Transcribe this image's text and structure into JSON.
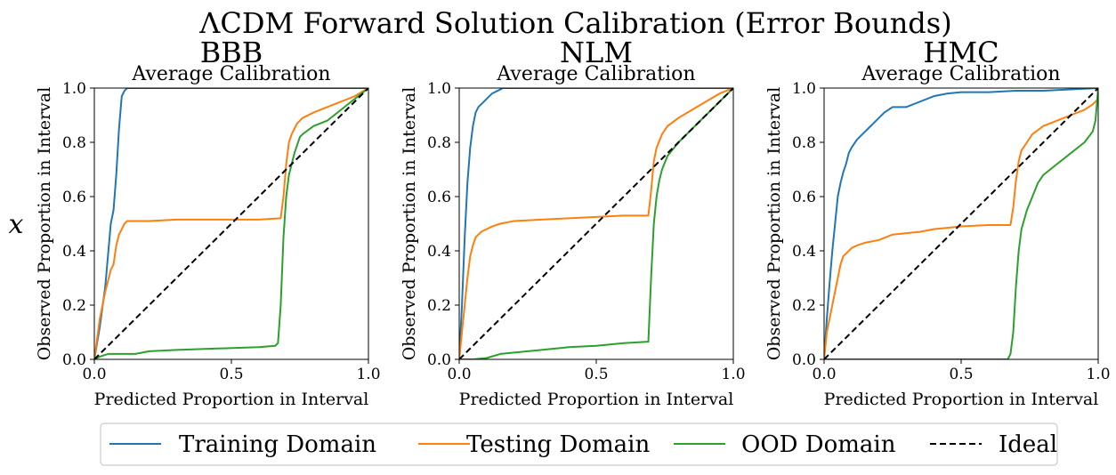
{
  "figure": {
    "title": "ΛCDM Forward Solution Calibration (Error Bounds)",
    "row_label": "x"
  },
  "legend": {
    "placement": "bottom-center",
    "entries": [
      {
        "label": "Training Domain",
        "color": "#1f77b4",
        "dash": "solid"
      },
      {
        "label": "Testing Domain",
        "color": "#ff7f0e",
        "dash": "solid"
      },
      {
        "label": "OOD Domain",
        "color": "#2ca02c",
        "dash": "solid"
      },
      {
        "label": "Ideal",
        "color": "#000000",
        "dash": "dashed"
      }
    ]
  },
  "chart_data": [
    {
      "type": "line",
      "model": "BBB",
      "title": "Average Calibration",
      "xlabel": "Predicted Proportion in Interval",
      "ylabel": "Observed Proportion in Interval",
      "xlim": [
        0,
        1
      ],
      "ylim": [
        0,
        1
      ],
      "xticks": [
        "0.0",
        "0.5",
        "1.0"
      ],
      "yticks": [
        "0.0",
        "0.2",
        "0.4",
        "0.6",
        "0.8",
        "1.0"
      ],
      "grid": false,
      "series": [
        {
          "name": "Training Domain",
          "color": "#1f77b4",
          "x": [
            0,
            0.02,
            0.04,
            0.06,
            0.07,
            0.08,
            0.09,
            0.1,
            0.11,
            0.12,
            0.13,
            1.0
          ],
          "y": [
            0,
            0.12,
            0.27,
            0.5,
            0.55,
            0.68,
            0.85,
            0.97,
            0.99,
            1.0,
            1.0,
            1.0
          ]
        },
        {
          "name": "Testing Domain",
          "color": "#ff7f0e",
          "x": [
            0,
            0.02,
            0.04,
            0.06,
            0.07,
            0.08,
            0.09,
            0.1,
            0.11,
            0.12,
            0.2,
            0.3,
            0.45,
            0.6,
            0.68,
            0.69,
            0.7,
            0.71,
            0.72,
            0.73,
            0.74,
            0.76,
            0.8,
            0.85,
            0.9,
            0.95,
            1.0
          ],
          "y": [
            0,
            0.15,
            0.25,
            0.33,
            0.35,
            0.42,
            0.46,
            0.48,
            0.5,
            0.51,
            0.51,
            0.515,
            0.515,
            0.515,
            0.52,
            0.6,
            0.72,
            0.8,
            0.83,
            0.85,
            0.87,
            0.89,
            0.91,
            0.93,
            0.95,
            0.97,
            1.0
          ]
        },
        {
          "name": "OOD Domain",
          "color": "#2ca02c",
          "x": [
            0,
            0.02,
            0.05,
            0.1,
            0.15,
            0.2,
            0.3,
            0.45,
            0.6,
            0.66,
            0.67,
            0.68,
            0.69,
            0.7,
            0.71,
            0.72,
            0.73,
            0.74,
            0.75,
            0.76,
            0.8,
            0.85,
            0.9,
            0.95,
            1.0
          ],
          "y": [
            0,
            0.01,
            0.02,
            0.02,
            0.02,
            0.03,
            0.035,
            0.04,
            0.045,
            0.05,
            0.06,
            0.2,
            0.45,
            0.6,
            0.68,
            0.72,
            0.76,
            0.79,
            0.82,
            0.83,
            0.86,
            0.88,
            0.92,
            0.96,
            1.0
          ]
        },
        {
          "name": "Ideal",
          "color": "#000000",
          "dashed": true,
          "x": [
            0,
            1
          ],
          "y": [
            0,
            1
          ]
        }
      ]
    },
    {
      "type": "line",
      "model": "NLM",
      "title": "Average Calibration",
      "xlabel": "Predicted Proportion in Interval",
      "ylabel": "Observed Proportion in Interval",
      "xlim": [
        0,
        1
      ],
      "ylim": [
        0,
        1
      ],
      "xticks": [
        "0.0",
        "0.5",
        "1.0"
      ],
      "yticks": [
        "0.0",
        "0.2",
        "0.4",
        "0.6",
        "0.8",
        "1.0"
      ],
      "grid": false,
      "series": [
        {
          "name": "Training Domain",
          "color": "#1f77b4",
          "x": [
            0,
            0.01,
            0.02,
            0.03,
            0.04,
            0.05,
            0.06,
            0.07,
            0.08,
            0.1,
            0.12,
            0.14,
            0.16,
            0.18,
            1.0
          ],
          "y": [
            0,
            0.2,
            0.45,
            0.65,
            0.78,
            0.86,
            0.91,
            0.93,
            0.94,
            0.96,
            0.98,
            0.99,
            1.0,
            1.0,
            1.0
          ]
        },
        {
          "name": "Testing Domain",
          "color": "#ff7f0e",
          "x": [
            0,
            0.01,
            0.02,
            0.03,
            0.04,
            0.05,
            0.06,
            0.07,
            0.08,
            0.1,
            0.12,
            0.15,
            0.2,
            0.3,
            0.4,
            0.5,
            0.6,
            0.69,
            0.7,
            0.71,
            0.72,
            0.74,
            0.76,
            0.8,
            0.85,
            0.9,
            0.95,
            1.0
          ],
          "y": [
            0,
            0.1,
            0.2,
            0.3,
            0.38,
            0.42,
            0.45,
            0.46,
            0.47,
            0.48,
            0.49,
            0.5,
            0.51,
            0.515,
            0.52,
            0.525,
            0.53,
            0.53,
            0.62,
            0.73,
            0.78,
            0.83,
            0.86,
            0.89,
            0.92,
            0.95,
            0.98,
            1.0
          ]
        },
        {
          "name": "OOD Domain",
          "color": "#2ca02c",
          "x": [
            0,
            0.05,
            0.1,
            0.15,
            0.2,
            0.3,
            0.4,
            0.5,
            0.6,
            0.69,
            0.7,
            0.71,
            0.72,
            0.73,
            0.74,
            0.76,
            0.8,
            0.85,
            0.9,
            0.95,
            1.0
          ],
          "y": [
            0,
            0.0,
            0.005,
            0.02,
            0.025,
            0.035,
            0.045,
            0.05,
            0.06,
            0.065,
            0.3,
            0.5,
            0.6,
            0.66,
            0.7,
            0.75,
            0.8,
            0.85,
            0.9,
            0.95,
            1.0
          ]
        },
        {
          "name": "Ideal",
          "color": "#000000",
          "dashed": true,
          "x": [
            0,
            1
          ],
          "y": [
            0,
            1
          ]
        }
      ]
    },
    {
      "type": "line",
      "model": "HMC",
      "title": "Average Calibration",
      "xlabel": "Predicted Proportion in Interval",
      "ylabel": "Observed Proportion in Interval",
      "xlim": [
        0,
        1
      ],
      "ylim": [
        0,
        1
      ],
      "xticks": [
        "0.0",
        "0.5",
        "1.0"
      ],
      "yticks": [
        "0.0",
        "0.2",
        "0.4",
        "0.6",
        "0.8",
        "1.0"
      ],
      "grid": false,
      "series": [
        {
          "name": "Training Domain",
          "color": "#1f77b4",
          "x": [
            0,
            0.01,
            0.02,
            0.03,
            0.04,
            0.05,
            0.06,
            0.07,
            0.08,
            0.09,
            0.1,
            0.12,
            0.14,
            0.16,
            0.18,
            0.2,
            0.22,
            0.25,
            0.3,
            0.35,
            0.4,
            0.45,
            0.5,
            0.6,
            0.7,
            0.8,
            0.9,
            1.0
          ],
          "y": [
            0,
            0.15,
            0.28,
            0.4,
            0.5,
            0.6,
            0.65,
            0.69,
            0.72,
            0.76,
            0.78,
            0.81,
            0.83,
            0.85,
            0.87,
            0.89,
            0.91,
            0.93,
            0.93,
            0.95,
            0.97,
            0.98,
            0.985,
            0.985,
            0.99,
            0.99,
            0.995,
            1.0
          ]
        },
        {
          "name": "Testing Domain",
          "color": "#ff7f0e",
          "x": [
            0,
            0.01,
            0.02,
            0.03,
            0.04,
            0.05,
            0.06,
            0.07,
            0.08,
            0.1,
            0.12,
            0.15,
            0.2,
            0.25,
            0.3,
            0.35,
            0.4,
            0.45,
            0.5,
            0.6,
            0.68,
            0.69,
            0.7,
            0.71,
            0.72,
            0.74,
            0.76,
            0.8,
            0.85,
            0.9,
            0.95,
            0.98,
            1.0
          ],
          "y": [
            0,
            0.1,
            0.15,
            0.2,
            0.25,
            0.3,
            0.35,
            0.38,
            0.39,
            0.41,
            0.42,
            0.43,
            0.44,
            0.46,
            0.465,
            0.47,
            0.48,
            0.485,
            0.49,
            0.495,
            0.495,
            0.56,
            0.66,
            0.73,
            0.77,
            0.8,
            0.83,
            0.86,
            0.88,
            0.9,
            0.92,
            0.94,
            0.96
          ]
        },
        {
          "name": "OOD Domain",
          "color": "#2ca02c",
          "x": [
            0,
            0.1,
            0.2,
            0.3,
            0.4,
            0.5,
            0.6,
            0.67,
            0.68,
            0.69,
            0.7,
            0.71,
            0.72,
            0.74,
            0.76,
            0.78,
            0.8,
            0.85,
            0.9,
            0.95,
            0.98,
            0.99,
            1.0
          ],
          "y": [
            0,
            0.0,
            0.0,
            0.0,
            0.0,
            0.0,
            0.0,
            0.0,
            0.02,
            0.1,
            0.27,
            0.4,
            0.48,
            0.55,
            0.6,
            0.65,
            0.68,
            0.72,
            0.76,
            0.8,
            0.84,
            0.88,
            1.0
          ]
        },
        {
          "name": "Ideal",
          "color": "#000000",
          "dashed": true,
          "x": [
            0,
            1
          ],
          "y": [
            0,
            1
          ]
        }
      ]
    }
  ]
}
